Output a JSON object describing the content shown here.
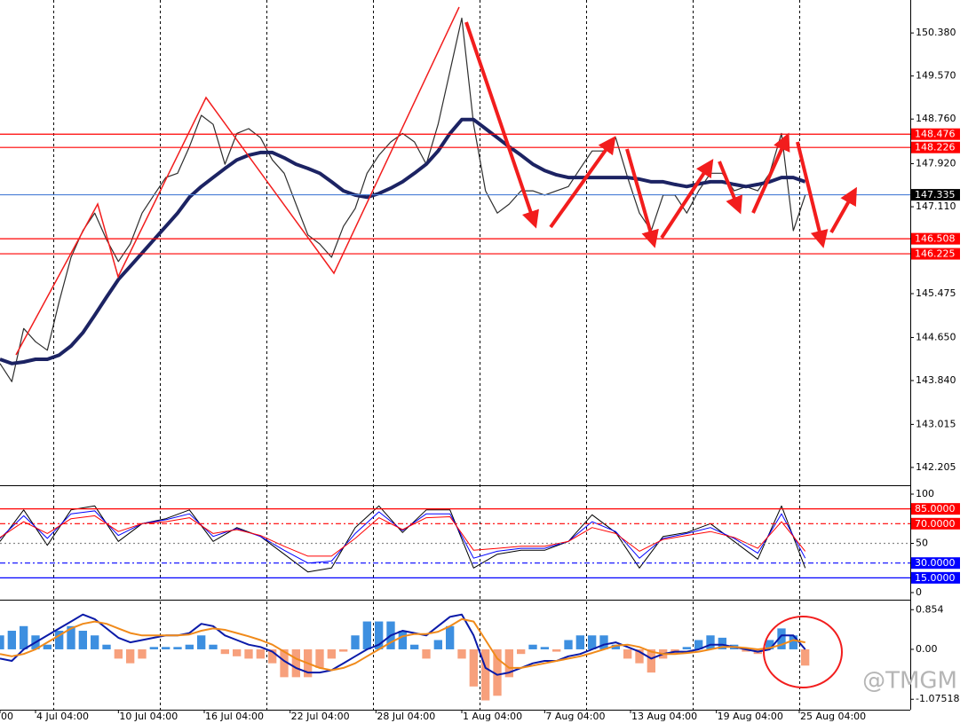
{
  "chart_data": [
    {
      "type": "line",
      "xlim": [
        0,
        307.5
      ],
      "x": [
        0,
        4,
        8,
        12,
        16,
        20,
        24,
        28,
        32,
        36,
        40,
        44,
        48,
        52,
        56,
        60,
        64,
        68,
        72,
        76,
        80,
        84,
        88,
        92,
        96,
        100,
        104,
        108,
        112,
        116,
        120,
        124,
        128,
        132,
        136,
        140,
        144,
        148,
        152,
        156,
        160,
        164,
        168,
        172,
        176,
        180,
        184,
        188,
        192,
        196,
        200,
        204,
        208,
        212,
        216,
        220,
        224,
        228,
        232,
        236,
        240,
        244,
        248,
        252,
        256,
        260,
        264,
        268,
        272
      ],
      "xticks": [
        {
          "value": 0,
          "label": "00"
        },
        {
          "value": 12,
          "label": "4 Jul 04:00"
        },
        {
          "value": 40,
          "label": "10 Jul 04:00"
        },
        {
          "value": 69,
          "label": "16 Jul 04:00"
        },
        {
          "value": 98,
          "label": "22 Jul 04:00"
        },
        {
          "value": 127,
          "label": "28 Jul 04:00"
        },
        {
          "value": 156,
          "label": "1 Aug 04:00"
        },
        {
          "value": 184,
          "label": "7 Aug 04:00"
        },
        {
          "value": 213,
          "label": "13 Aug 04:00"
        },
        {
          "value": 242,
          "label": "19 Aug 04:00"
        },
        {
          "value": 270,
          "label": "25 Aug 04:00"
        }
      ],
      "separators": [
        18,
        54,
        90,
        126,
        162,
        198,
        234,
        270
      ],
      "ylim": [
        141.87,
        151.0
      ],
      "yticks": [
        {
          "value": 150.38,
          "label": "150.380"
        },
        {
          "value": 149.57,
          "label": "149.570"
        },
        {
          "value": 148.76,
          "label": "148.760"
        },
        {
          "value": 147.92,
          "label": "147.920"
        },
        {
          "value": 147.11,
          "label": "147.110"
        },
        145.475,
        {
          "value": 144.65,
          "label": "144.650"
        },
        {
          "value": 143.84,
          "label": "143.840"
        },
        143.015,
        142.205
      ],
      "levels": [
        {
          "value": 148.476,
          "color": "#ff0000",
          "dash": "solid",
          "boxed": true
        },
        {
          "value": 148.226,
          "color": "#ff0000",
          "dash": "solid",
          "boxed": true
        },
        {
          "value": 147.335,
          "color": "#4a7fd6",
          "dash": "solid",
          "boxed": true,
          "box_color": "#000000"
        },
        {
          "value": 146.508,
          "color": "#ff0000",
          "dash": "solid",
          "boxed": true
        },
        {
          "value": 146.225,
          "color": "#ff0000",
          "dash": "solid",
          "boxed": true
        }
      ],
      "series": [
        {
          "kind": "line",
          "color": "#2e2e2e",
          "line_width": 1.2,
          "values": [
            144.16,
            143.82,
            144.82,
            144.57,
            144.41,
            145.33,
            146.16,
            146.66,
            146.99,
            146.49,
            146.08,
            146.41,
            146.99,
            147.33,
            147.66,
            147.74,
            148.24,
            148.83,
            148.66,
            147.91,
            148.49,
            148.58,
            148.41,
            147.99,
            147.74,
            147.16,
            146.58,
            146.41,
            146.16,
            146.74,
            147.08,
            147.74,
            148.08,
            148.33,
            148.49,
            148.33,
            147.91,
            148.66,
            149.66,
            150.66,
            148.66,
            147.41,
            146.99,
            147.16,
            147.41,
            147.41,
            147.33,
            147.41,
            147.49,
            147.83,
            148.16,
            148.16,
            148.41,
            147.66,
            146.99,
            146.66,
            147.33,
            147.33,
            146.99,
            147.41,
            147.74,
            147.74,
            147.41,
            147.49,
            147.41,
            147.74,
            148.49,
            146.66,
            147.33
          ]
        },
        {
          "kind": "line",
          "color": "#1c2363",
          "line_width": 4,
          "values": [
            144.24,
            144.16,
            144.19,
            144.24,
            144.24,
            144.32,
            144.49,
            144.74,
            145.07,
            145.41,
            145.74,
            145.99,
            146.24,
            146.49,
            146.74,
            146.99,
            147.29,
            147.49,
            147.66,
            147.83,
            147.99,
            148.08,
            148.13,
            148.13,
            148.03,
            147.91,
            147.83,
            147.74,
            147.58,
            147.41,
            147.33,
            147.29,
            147.36,
            147.46,
            147.58,
            147.74,
            147.91,
            148.16,
            148.49,
            148.75,
            148.75,
            148.58,
            148.41,
            148.24,
            148.08,
            147.91,
            147.79,
            147.71,
            147.66,
            147.66,
            147.66,
            147.66,
            147.66,
            147.66,
            147.63,
            147.58,
            147.58,
            147.53,
            147.49,
            147.54,
            147.58,
            147.58,
            147.53,
            147.49,
            147.53,
            147.58,
            147.66,
            147.66,
            147.58
          ]
        }
      ]
    },
    {
      "type": "line",
      "x": [
        0,
        8,
        16,
        24,
        32,
        40,
        48,
        56,
        64,
        72,
        80,
        88,
        96,
        104,
        112,
        120,
        128,
        136,
        144,
        152,
        160,
        168,
        176,
        184,
        192,
        200,
        208,
        216,
        224,
        232,
        240,
        248,
        256,
        264,
        272
      ],
      "ylim": [
        -6.3,
        107.2
      ],
      "yticks": [
        100,
        50,
        0
      ],
      "levels": [
        {
          "value": 85,
          "label": "85.0000",
          "color": "#ff0000",
          "dash": "solid"
        },
        {
          "value": 70,
          "label": "70.0000",
          "color": "#ff0000",
          "dash": "dashdot"
        },
        {
          "value": 50,
          "color": "#888888",
          "dash": "dotted"
        },
        {
          "value": 30,
          "label": "30.0000",
          "color": "#0000ff",
          "dash": "dashdot"
        },
        {
          "value": 15,
          "label": "15.0000",
          "color": "#0000ff",
          "dash": "solid"
        }
      ],
      "series": [
        {
          "kind": "line",
          "color": "#000000",
          "line_width": 1,
          "values": [
            52,
            84,
            48,
            84,
            88,
            52,
            70,
            75,
            84,
            52,
            66,
            57,
            39,
            21,
            25,
            66,
            88,
            61,
            84,
            84,
            25,
            39,
            43,
            43,
            52,
            79,
            61,
            25,
            57,
            61,
            70,
            52,
            34,
            88,
            25
          ]
        },
        {
          "kind": "line",
          "color": "#0000ff",
          "line_width": 1,
          "values": [
            55,
            78,
            55,
            80,
            83,
            58,
            70,
            74,
            80,
            57,
            65,
            57,
            43,
            30,
            32,
            60,
            82,
            63,
            80,
            80,
            35,
            42,
            45,
            45,
            52,
            72,
            62,
            35,
            55,
            60,
            66,
            55,
            40,
            80,
            35
          ]
        },
        {
          "kind": "line",
          "color": "#ff0000",
          "line_width": 1,
          "values": [
            56,
            72,
            60,
            75,
            78,
            62,
            70,
            72,
            76,
            60,
            64,
            58,
            47,
            37,
            37,
            55,
            76,
            64,
            76,
            77,
            43,
            45,
            47,
            47,
            52,
            66,
            60,
            42,
            54,
            58,
            62,
            56,
            45,
            72,
            42
          ]
        }
      ]
    },
    {
      "type": "combo",
      "ylim": [
        -1.3,
        1.05
      ],
      "yticks": [
        0.854,
        {
          "value": 0,
          "label": "0.00"
        },
        -1.07518
      ],
      "series": [
        {
          "kind": "bar",
          "color": "#3d8fe0",
          "negative_color": "#f7a07c",
          "values": [
            0.3,
            0.4,
            0.5,
            0.3,
            0.1,
            0.4,
            0.5,
            0.4,
            0.3,
            0.1,
            -0.2,
            -0.3,
            -0.2,
            0.05,
            0.05,
            0.05,
            0.1,
            0.3,
            0.1,
            -0.1,
            -0.15,
            -0.2,
            -0.2,
            -0.3,
            -0.6,
            -0.6,
            -0.6,
            -0.4,
            -0.2,
            -0.05,
            0.3,
            0.6,
            0.6,
            0.6,
            0.4,
            0.1,
            -0.2,
            0.2,
            0.5,
            -0.2,
            -0.8,
            -1.1,
            -1.0,
            -0.6,
            -0.1,
            0.1,
            0.05,
            -0.05,
            0.2,
            0.3,
            0.3,
            0.3,
            0.1,
            -0.2,
            -0.3,
            -0.5,
            -0.2,
            -0.1,
            0.05,
            0.2,
            0.3,
            0.25,
            0.1,
            -0.05,
            -0.1,
            0.2,
            0.45,
            0.3,
            -0.35
          ]
        },
        {
          "kind": "line",
          "color": "#0a1aa8",
          "line_width": 2,
          "values": [
            -0.2,
            -0.25,
            0,
            0.15,
            0.3,
            0.45,
            0.6,
            0.75,
            0.65,
            0.45,
            0.25,
            0.15,
            0.2,
            0.25,
            0.3,
            0.3,
            0.35,
            0.55,
            0.5,
            0.3,
            0.2,
            0.1,
            0.05,
            -0.05,
            -0.25,
            -0.4,
            -0.5,
            -0.5,
            -0.45,
            -0.3,
            -0.15,
            0,
            0.1,
            0.3,
            0.4,
            0.35,
            0.3,
            0.5,
            0.7,
            0.75,
            0.3,
            -0.4,
            -0.55,
            -0.5,
            -0.4,
            -0.3,
            -0.25,
            -0.25,
            -0.15,
            -0.1,
            0,
            0.1,
            0.15,
            0.05,
            -0.05,
            -0.2,
            -0.1,
            -0.05,
            -0.05,
            0,
            0.1,
            0.1,
            0.05,
            0,
            -0.05,
            0,
            0.3,
            0.3,
            0
          ]
        },
        {
          "kind": "line",
          "color": "#f08a1a",
          "line_width": 2,
          "values": [
            -0.1,
            -0.15,
            -0.1,
            0,
            0.15,
            0.3,
            0.45,
            0.55,
            0.6,
            0.55,
            0.45,
            0.35,
            0.3,
            0.3,
            0.3,
            0.3,
            0.32,
            0.4,
            0.45,
            0.42,
            0.35,
            0.28,
            0.2,
            0.1,
            -0.05,
            -0.2,
            -0.3,
            -0.4,
            -0.45,
            -0.4,
            -0.3,
            -0.15,
            0,
            0.15,
            0.28,
            0.33,
            0.33,
            0.38,
            0.5,
            0.65,
            0.6,
            0.2,
            -0.2,
            -0.4,
            -0.4,
            -0.35,
            -0.3,
            -0.25,
            -0.2,
            -0.15,
            -0.08,
            0,
            0.08,
            0.1,
            0.05,
            -0.05,
            -0.1,
            -0.1,
            -0.08,
            -0.05,
            0,
            0.05,
            0.05,
            0.03,
            0,
            0.03,
            0.1,
            0.2,
            0.15
          ]
        }
      ]
    }
  ],
  "watermark": "@TMGM"
}
